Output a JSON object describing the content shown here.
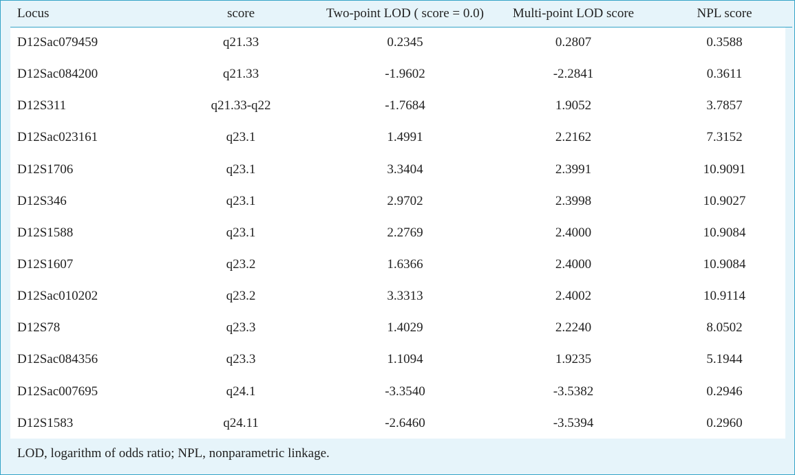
{
  "table": {
    "headers": [
      "Locus",
      "score",
      "Two-point LOD ( score = 0.0)",
      "Multi-point LOD score",
      "NPL score"
    ],
    "rows": [
      [
        "D12Sac079459",
        "q21.33",
        "0.2345",
        "0.2807",
        "0.3588"
      ],
      [
        "D12Sac084200",
        "q21.33",
        "-1.9602",
        "-2.2841",
        "0.3611"
      ],
      [
        "D12S311",
        "q21.33-q22",
        "-1.7684",
        "1.9052",
        "3.7857"
      ],
      [
        "D12Sac023161",
        "q23.1",
        "1.4991",
        "2.2162",
        "7.3152"
      ],
      [
        "D12S1706",
        "q23.1",
        "3.3404",
        "2.3991",
        "10.9091"
      ],
      [
        "D12S346",
        "q23.1",
        "2.9702",
        "2.3998",
        "10.9027"
      ],
      [
        "D12S1588",
        "q23.1",
        "2.2769",
        "2.4000",
        "10.9084"
      ],
      [
        "D12S1607",
        "q23.2",
        "1.6366",
        "2.4000",
        "10.9084"
      ],
      [
        "D12Sac010202",
        "q23.2",
        "3.3313",
        "2.4002",
        "10.9114"
      ],
      [
        "D12S78",
        "q23.3",
        "1.4029",
        "2.2240",
        "8.0502"
      ],
      [
        "D12Sac084356",
        "q23.3",
        "1.1094",
        "1.9235",
        "5.1944"
      ],
      [
        "D12Sac007695",
        "q24.1",
        "-3.3540",
        "-3.5382",
        "0.2946"
      ],
      [
        "D12S1583",
        "q24.11",
        "-2.6460",
        "-3.5394",
        "0.2960"
      ]
    ]
  },
  "footnote": "LOD, logarithm of odds ratio; NPL, nonparametric linkage."
}
